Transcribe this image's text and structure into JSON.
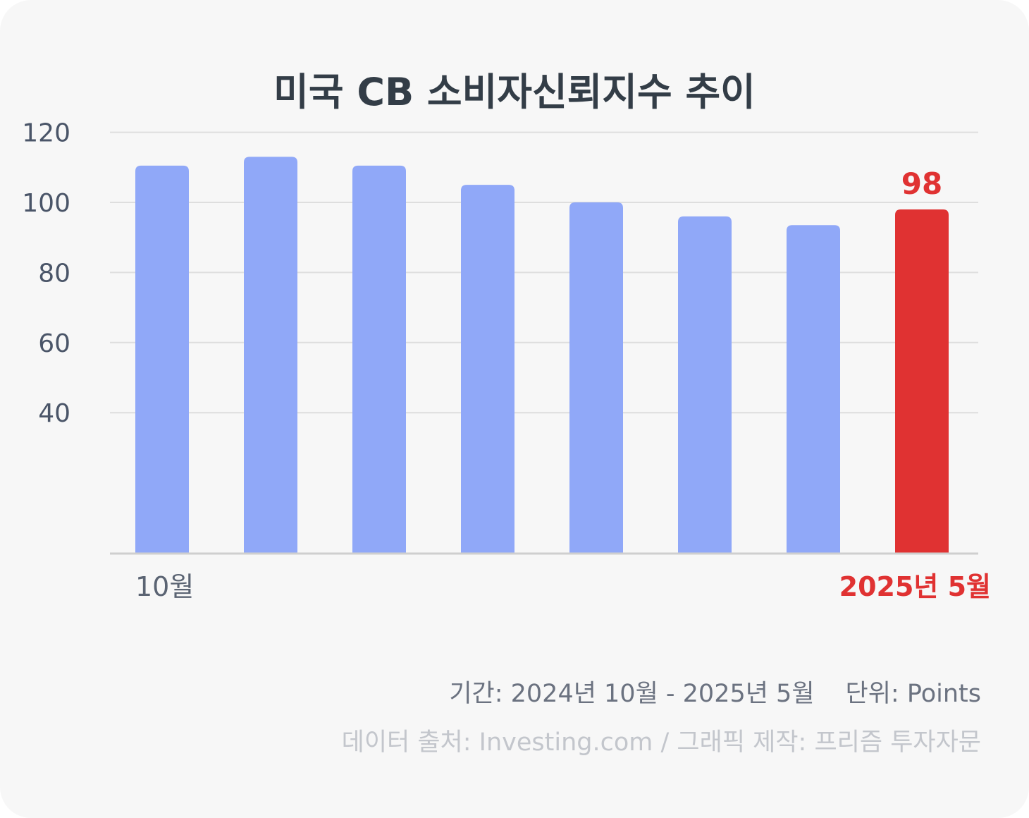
{
  "title": "미국 CB 소비자신뢰지수 추이",
  "chart_data": {
    "type": "bar",
    "title": "미국 CB 소비자신뢰지수 추이",
    "categories": [
      "10월",
      "",
      "",
      "",
      "",
      "",
      "",
      "2025년 5월"
    ],
    "values": [
      110.5,
      113,
      110.5,
      105,
      100,
      96,
      93.5,
      98
    ],
    "y_ticks": [
      120,
      100,
      80,
      60,
      40
    ],
    "ylim": [
      0,
      120
    ],
    "grid": true,
    "highlight": {
      "index": 7,
      "label": "98"
    },
    "colors": {
      "bar": "#90a8f8",
      "highlight": "#e03232"
    }
  },
  "footer": {
    "period": "기간: 2024년 10월 - 2025년 5월",
    "unit": "단위: Points",
    "source": "데이터 출처: Investing.com / 그래픽 제작: 프리즘 투자자문"
  }
}
